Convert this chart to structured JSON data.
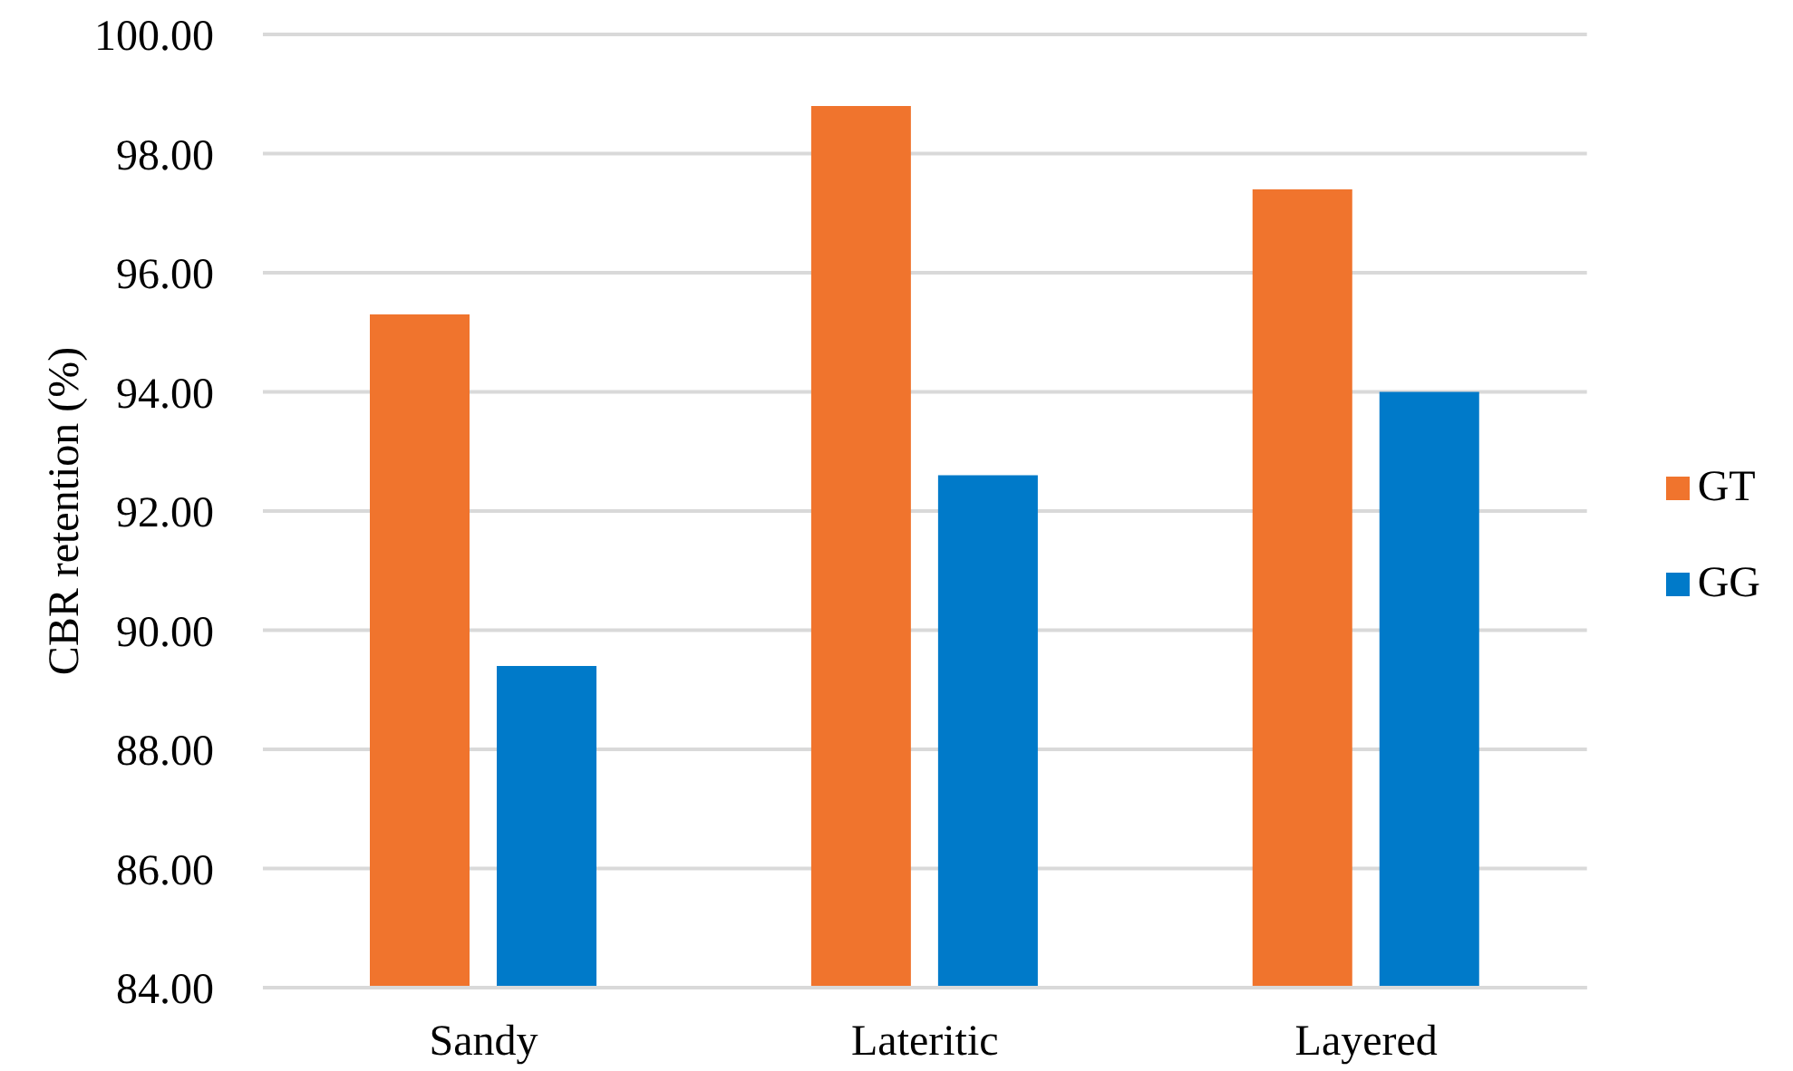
{
  "chart_data": {
    "type": "bar",
    "ylabel": "CBR retention (%)",
    "categories": [
      "Sandy",
      "Lateritic",
      "Layered"
    ],
    "series": [
      {
        "name": "GT",
        "color": "#f0742d",
        "values": [
          95.3,
          98.8,
          97.4
        ]
      },
      {
        "name": "GG",
        "color": "#007ac9",
        "values": [
          89.4,
          92.6,
          94.0
        ]
      }
    ],
    "ylim": [
      84,
      100
    ],
    "yticks": [
      {
        "value": 84,
        "label": "84.00"
      },
      {
        "value": 86,
        "label": "86.00"
      },
      {
        "value": 88,
        "label": "88.00"
      },
      {
        "value": 90,
        "label": "90.00"
      },
      {
        "value": 92,
        "label": "92.00"
      },
      {
        "value": 94,
        "label": "94.00"
      },
      {
        "value": 96,
        "label": "96.00"
      },
      {
        "value": 98,
        "label": "98.00"
      },
      {
        "value": 100,
        "label": "100.00"
      }
    ],
    "grid": "y",
    "legend": "right"
  }
}
